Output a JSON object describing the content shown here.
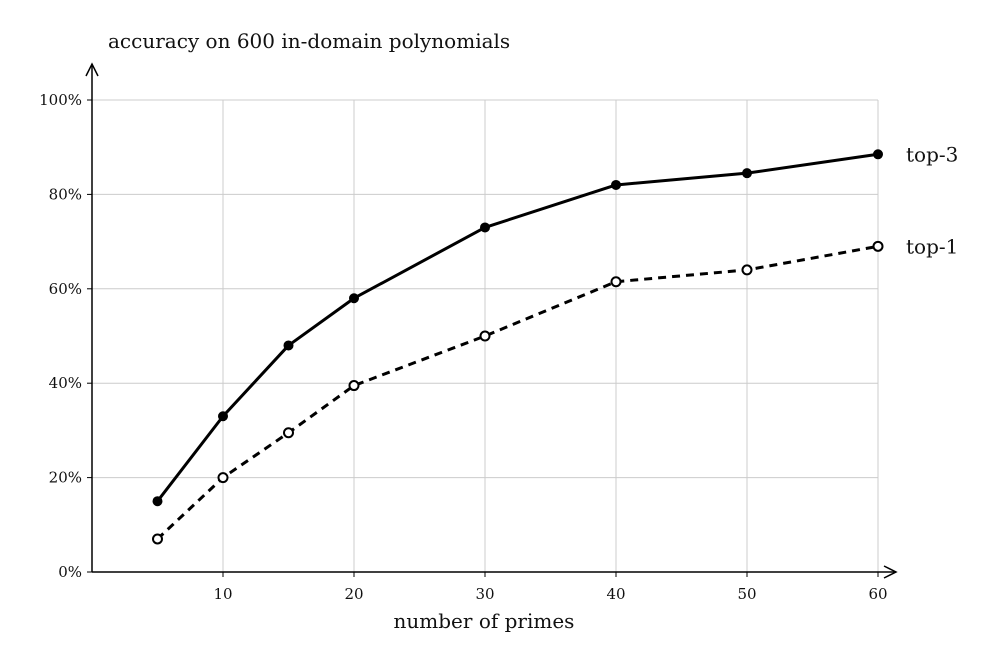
{
  "chart_data": {
    "type": "line",
    "title": "",
    "ylabel": "accuracy on 600 in-domain polynomials",
    "xlabel": "number of primes",
    "x_ticks": [
      10,
      20,
      30,
      40,
      50,
      60
    ],
    "y_ticks": [
      "0%",
      "20%",
      "40%",
      "60%",
      "80%",
      "100%"
    ],
    "xlim": [
      0,
      60
    ],
    "ylim": [
      0,
      100
    ],
    "grid": true,
    "x": [
      5,
      10,
      15,
      20,
      30,
      40,
      50,
      60
    ],
    "series": [
      {
        "name": "top-3",
        "values": [
          15,
          33,
          48,
          58,
          73,
          82,
          84.5,
          88.5
        ],
        "line_style": "solid",
        "marker": "filled-circle",
        "color": "#000000"
      },
      {
        "name": "top-1",
        "values": [
          7,
          20,
          29.5,
          39.5,
          50,
          61.5,
          64,
          69
        ],
        "line_style": "dashed",
        "marker": "open-circle",
        "color": "#000000"
      }
    ]
  }
}
